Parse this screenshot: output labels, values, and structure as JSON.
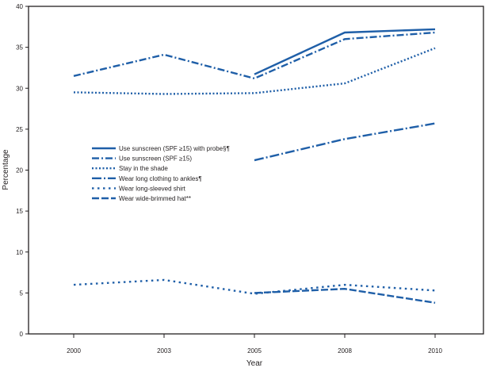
{
  "chart_data": {
    "type": "line",
    "title": "",
    "xlabel": "Year",
    "ylabel": "Percentage",
    "categories": [
      "2000",
      "2003",
      "2005",
      "2008",
      "2010"
    ],
    "ylim": [
      0,
      40
    ],
    "yticks": [
      0,
      5,
      10,
      15,
      20,
      25,
      30,
      35,
      40
    ],
    "grid": false,
    "legend_position": "center-left",
    "color": "#1f5fa8",
    "series": [
      {
        "name": "Use sunscreen (SPF ≥15) with probe§¶",
        "style": "solid",
        "values": [
          null,
          null,
          31.7,
          36.8,
          37.2
        ]
      },
      {
        "name": "Use sunscreen (SPF ≥15)",
        "style": "dash-dot",
        "values": [
          31.5,
          34.1,
          31.2,
          36.0,
          36.8
        ]
      },
      {
        "name": "Stay in the shade",
        "style": "dotted",
        "values": [
          29.5,
          29.3,
          29.4,
          30.6,
          34.9
        ]
      },
      {
        "name": "Wear long clothing to ankles¶",
        "style": "long-dash-dot",
        "values": [
          null,
          null,
          21.2,
          23.8,
          25.7
        ]
      },
      {
        "name": "Wear long-sleeved shirt",
        "style": "sparse-dotted",
        "values": [
          6.0,
          6.6,
          4.9,
          6.0,
          5.3
        ]
      },
      {
        "name": "Wear wide-brimmed hat**",
        "style": "dashed",
        "values": [
          null,
          null,
          5.0,
          5.5,
          3.8
        ]
      }
    ]
  }
}
